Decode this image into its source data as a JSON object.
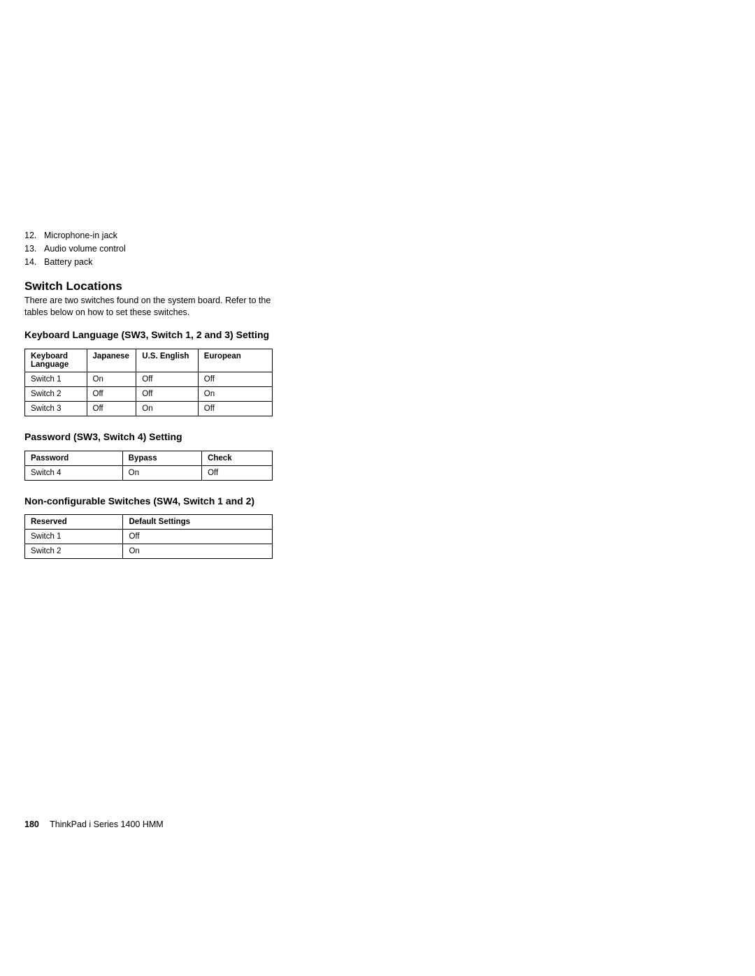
{
  "list": {
    "items": [
      {
        "num": "12.",
        "text": "Microphone-in jack"
      },
      {
        "num": "13.",
        "text": "Audio volume control"
      },
      {
        "num": "14.",
        "text": "Battery pack"
      }
    ]
  },
  "section1": {
    "heading": "Switch Locations",
    "body": "There are two switches found on the system board. Refer to the tables below on how to set these switches."
  },
  "table1": {
    "heading": "Keyboard Language (SW3, Switch 1, 2 and 3) Setting",
    "headers": [
      "Keyboard Language",
      "Japanese",
      "U.S. English",
      "European"
    ],
    "rows": [
      [
        "Switch 1",
        "On",
        "Off",
        "Off"
      ],
      [
        "Switch 2",
        "Off",
        "Off",
        "On"
      ],
      [
        "Switch 3",
        "Off",
        "On",
        "Off"
      ]
    ],
    "col_widths": [
      "25%",
      "20%",
      "25%",
      "30%"
    ]
  },
  "table2": {
    "heading": "Password (SW3, Switch 4) Setting",
    "headers": [
      "Password",
      "Bypass",
      "Check"
    ],
    "rows": [
      [
        "Switch 4",
        "On",
        "Off"
      ]
    ],
    "col_widths": [
      "33%",
      "33%",
      "34%"
    ]
  },
  "table3": {
    "heading": "Non-configurable Switches (SW4, Switch 1 and 2)",
    "headers": [
      "Reserved",
      "Default Settings"
    ],
    "rows": [
      [
        "Switch 1",
        "Off"
      ],
      [
        "Switch 2",
        "On"
      ]
    ],
    "col_widths": [
      "55%",
      "45%"
    ]
  },
  "footer": {
    "page": "180",
    "title": "ThinkPad i Series 1400 HMM"
  }
}
